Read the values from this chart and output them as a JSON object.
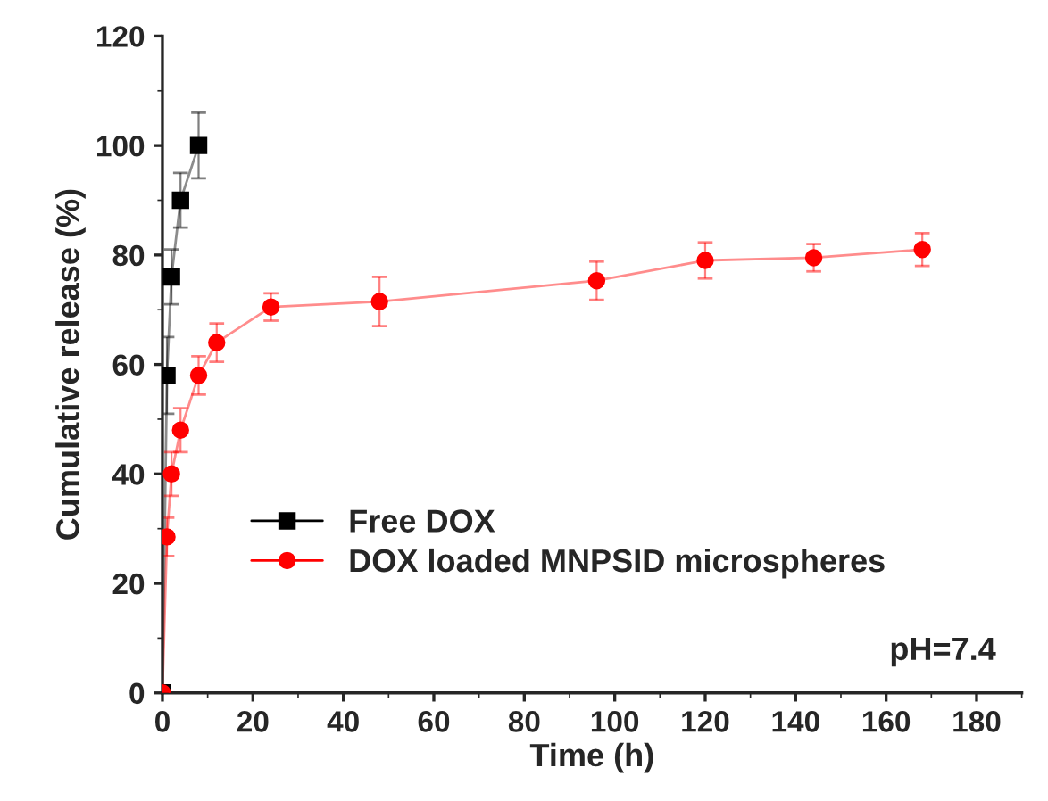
{
  "chart_data": {
    "type": "line",
    "xlabel": "Time (h)",
    "ylabel": "Cumulative release (%)",
    "xlim": [
      0,
      190
    ],
    "xticks": [
      0,
      20,
      40,
      60,
      80,
      100,
      120,
      140,
      160,
      180
    ],
    "ylim": [
      0,
      120
    ],
    "yticks": [
      0,
      20,
      40,
      60,
      80,
      100,
      120
    ],
    "series": [
      {
        "name": "Free DOX",
        "color": "#000000",
        "marker": "square",
        "x": [
          0,
          1,
          2,
          4,
          8
        ],
        "values": [
          0,
          58,
          76,
          90,
          100
        ],
        "errors": [
          null,
          7,
          5,
          5,
          6
        ]
      },
      {
        "name": "DOX loaded MNPSID microspheres",
        "color": "#ff0000",
        "marker": "circle",
        "x": [
          0,
          1,
          2,
          4,
          8,
          12,
          24,
          48,
          96,
          120,
          144,
          168
        ],
        "values": [
          0,
          28.5,
          40,
          48,
          58,
          64,
          70.5,
          71.5,
          75.3,
          79,
          79.5,
          81
        ],
        "errors": [
          null,
          3.5,
          4,
          4,
          3.5,
          3.5,
          2.5,
          4.5,
          3.5,
          3.3,
          2.5,
          3
        ]
      }
    ],
    "annotations": [
      "pH=7.4"
    ],
    "legend": "bottom left",
    "grid": false,
    "line_style": "solid"
  }
}
